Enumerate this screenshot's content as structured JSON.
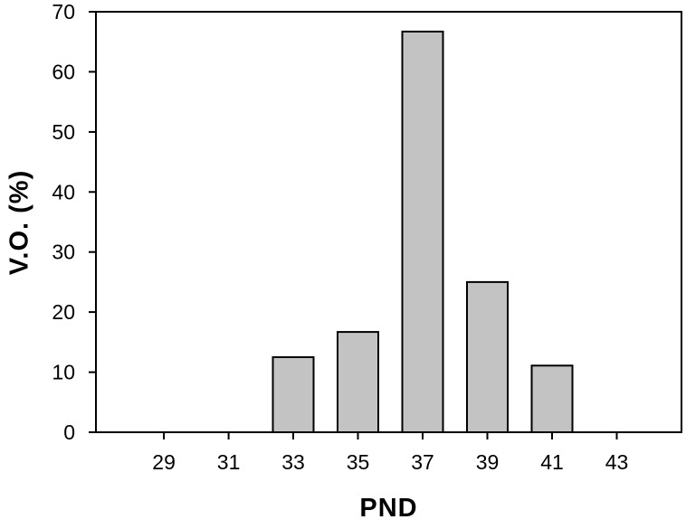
{
  "figure": {
    "background": "#ffffff",
    "x_axis_title": "PND",
    "y_axis_title": "V.O. (%)"
  },
  "chart_data": {
    "type": "bar",
    "title": "",
    "xlabel": "PND",
    "ylabel": "V.O. (%)",
    "categories": [
      29,
      31,
      33,
      35,
      37,
      39,
      41,
      43
    ],
    "values": [
      0,
      0,
      12.5,
      16.7,
      66.7,
      25.0,
      11.1,
      0
    ],
    "xticks": [
      29,
      31,
      33,
      35,
      37,
      39,
      41,
      43
    ],
    "yticks": [
      0,
      10,
      20,
      30,
      40,
      50,
      60,
      70
    ],
    "xlim": [
      26.9,
      45.0
    ],
    "ylim": [
      0,
      70
    ],
    "bar_width_units": 1.26,
    "grid": false,
    "legend_position": "none",
    "frame": "full-box",
    "tick_direction": "out",
    "bar_fill_color": "#c3c3c3",
    "bar_stroke_color": "#000000",
    "axis_color": "#000000",
    "tick_label_color": "#000000"
  }
}
